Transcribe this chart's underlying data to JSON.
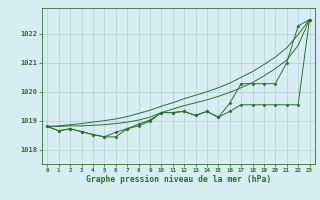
{
  "title": "Graphe pression niveau de la mer (hPa)",
  "background_color": "#d6eef2",
  "grid_color": "#b0cfd8",
  "line_color": "#2d6e2d",
  "marker_color": "#2d6e2d",
  "xlim": [
    -0.5,
    23.5
  ],
  "ylim": [
    1017.5,
    1022.9
  ],
  "yticks": [
    1018,
    1019,
    1020,
    1021,
    1022
  ],
  "xticks": [
    0,
    1,
    2,
    3,
    4,
    5,
    6,
    7,
    8,
    9,
    10,
    11,
    12,
    13,
    14,
    15,
    16,
    17,
    18,
    19,
    20,
    21,
    22,
    23
  ],
  "series_smooth1": [
    1018.8,
    1018.8,
    1018.82,
    1018.82,
    1018.84,
    1018.86,
    1018.9,
    1018.95,
    1019.02,
    1019.12,
    1019.28,
    1019.4,
    1019.52,
    1019.62,
    1019.72,
    1019.84,
    1019.98,
    1020.14,
    1020.32,
    1020.55,
    1020.8,
    1021.1,
    1021.6,
    1022.5
  ],
  "series_smooth2": [
    1018.8,
    1018.82,
    1018.86,
    1018.9,
    1018.95,
    1019.0,
    1019.06,
    1019.14,
    1019.25,
    1019.36,
    1019.5,
    1019.62,
    1019.76,
    1019.88,
    1020.0,
    1020.14,
    1020.3,
    1020.5,
    1020.7,
    1020.94,
    1021.2,
    1021.52,
    1021.98,
    1022.5
  ],
  "series_marker1": [
    1018.8,
    1018.65,
    1018.72,
    1018.62,
    1018.52,
    1018.44,
    1018.44,
    1018.72,
    1018.82,
    1018.98,
    1019.28,
    1019.28,
    1019.32,
    1019.18,
    1019.32,
    1019.12,
    1019.32,
    1019.55,
    1019.55,
    1019.55,
    1019.55,
    1019.55,
    1019.55,
    1022.5
  ],
  "series_marker2": [
    1018.8,
    1018.65,
    1018.72,
    1018.62,
    1018.52,
    1018.44,
    1018.6,
    1018.72,
    1018.88,
    1019.02,
    1019.28,
    1019.28,
    1019.32,
    1019.18,
    1019.32,
    1019.12,
    1019.6,
    1020.28,
    1020.28,
    1020.28,
    1020.28,
    1021.0,
    1022.28,
    1022.5
  ]
}
